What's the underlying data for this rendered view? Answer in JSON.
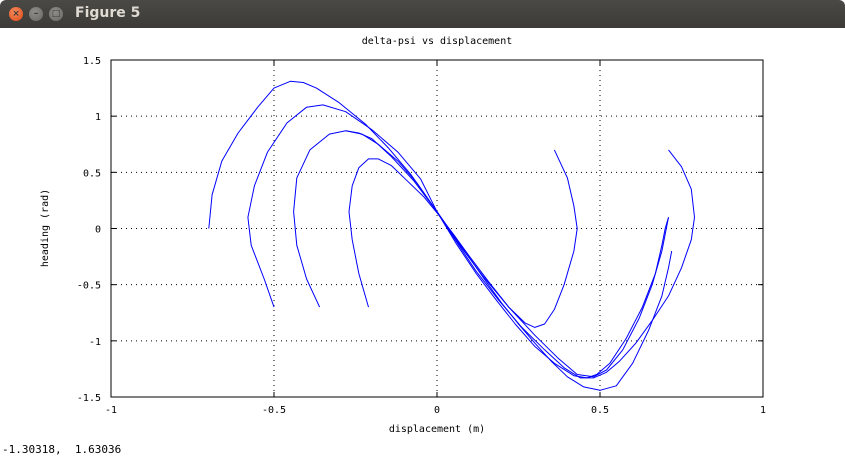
{
  "window": {
    "title": "Figure 5",
    "close_glyph": "×",
    "minimize_glyph": "–",
    "maximize_glyph": "□"
  },
  "status": {
    "coordinates": "-1.30318,  1.63036"
  },
  "colors": {
    "line": "#0000ff",
    "grid": "#000000",
    "titlebar": "#3c3b37"
  },
  "chart_data": {
    "type": "line",
    "title": "delta-psi vs displacement",
    "xlabel": "displacement (m)",
    "ylabel": "heading (rad)",
    "xlim": [
      -1,
      1
    ],
    "ylim": [
      -1.5,
      1.5
    ],
    "xticks": [
      -1,
      -0.5,
      0,
      0.5,
      1
    ],
    "xtick_labels": [
      "-1",
      "-0.5",
      "0",
      "0.5",
      "1"
    ],
    "yticks": [
      -1.5,
      -1,
      -0.5,
      0,
      0.5,
      1,
      1.5
    ],
    "ytick_labels": [
      "-1.5",
      "-1",
      "-0.5",
      "0",
      "0.5",
      "1",
      "1.5"
    ],
    "grid": true,
    "series": [
      {
        "x": [
          -0.7,
          -0.69,
          -0.66,
          -0.61,
          -0.55,
          -0.5,
          -0.45,
          -0.41,
          -0.37,
          -0.3,
          -0.22,
          -0.15,
          -0.08,
          0.0,
          0.08,
          0.15,
          0.2,
          0.25,
          0.3,
          0.35,
          0.4,
          0.45,
          0.5,
          0.55,
          0.6,
          0.65,
          0.69,
          0.71,
          0.72
        ],
        "y": [
          0.0,
          0.3,
          0.6,
          0.85,
          1.08,
          1.25,
          1.31,
          1.3,
          1.25,
          1.12,
          0.93,
          0.72,
          0.48,
          0.15,
          -0.18,
          -0.47,
          -0.67,
          -0.85,
          -1.02,
          -1.18,
          -1.32,
          -1.41,
          -1.44,
          -1.4,
          -1.2,
          -0.9,
          -0.6,
          -0.35,
          -0.2
        ]
      },
      {
        "x": [
          -0.5,
          -0.53,
          -0.57,
          -0.58,
          -0.56,
          -0.52,
          -0.46,
          -0.4,
          -0.35,
          -0.28,
          -0.2,
          -0.12,
          -0.05,
          0.0,
          0.06,
          0.12,
          0.18,
          0.24,
          0.3,
          0.36,
          0.42,
          0.46,
          0.49,
          0.53,
          0.58,
          0.63,
          0.67,
          0.69,
          0.7,
          0.71
        ],
        "y": [
          -0.7,
          -0.45,
          -0.15,
          0.1,
          0.38,
          0.68,
          0.94,
          1.08,
          1.1,
          1.04,
          0.88,
          0.68,
          0.44,
          0.15,
          -0.14,
          -0.4,
          -0.63,
          -0.85,
          -1.05,
          -1.2,
          -1.31,
          -1.33,
          -1.3,
          -1.2,
          -0.98,
          -0.7,
          -0.4,
          -0.15,
          0.0,
          0.1
        ]
      },
      {
        "x": [
          -0.36,
          -0.4,
          -0.43,
          -0.44,
          -0.43,
          -0.39,
          -0.33,
          -0.28,
          -0.23,
          -0.18,
          -0.12,
          -0.06,
          0.0,
          0.07,
          0.14,
          0.22,
          0.3,
          0.37,
          0.43,
          0.48,
          0.52,
          0.57,
          0.62,
          0.66,
          0.69,
          0.71
        ],
        "y": [
          -0.7,
          -0.45,
          -0.15,
          0.15,
          0.45,
          0.7,
          0.84,
          0.87,
          0.84,
          0.75,
          0.6,
          0.4,
          0.15,
          -0.15,
          -0.42,
          -0.7,
          -0.95,
          -1.15,
          -1.3,
          -1.32,
          -1.26,
          -1.08,
          -0.8,
          -0.5,
          -0.2,
          0.1
        ]
      },
      {
        "x": [
          -0.21,
          -0.24,
          -0.26,
          -0.27,
          -0.26,
          -0.24,
          -0.21,
          -0.18,
          -0.14,
          -0.09,
          -0.04,
          0.0,
          0.05,
          0.1,
          0.16,
          0.22,
          0.27,
          0.3,
          0.33,
          0.36,
          0.39,
          0.42,
          0.43,
          0.42,
          0.4,
          0.36
        ],
        "y": [
          -0.7,
          -0.4,
          -0.1,
          0.15,
          0.38,
          0.54,
          0.62,
          0.62,
          0.56,
          0.42,
          0.28,
          0.14,
          -0.05,
          -0.25,
          -0.48,
          -0.7,
          -0.84,
          -0.88,
          -0.85,
          -0.72,
          -0.5,
          -0.2,
          0.0,
          0.2,
          0.45,
          0.7
        ]
      },
      {
        "x": [
          -0.28,
          -0.24,
          -0.2,
          -0.14,
          -0.07,
          0.0,
          0.06,
          0.12,
          0.19,
          0.26,
          0.33,
          0.39,
          0.44,
          0.48,
          0.52,
          0.56,
          0.61,
          0.66,
          0.71,
          0.75,
          0.78,
          0.79,
          0.78,
          0.75,
          0.71
        ],
        "y": [
          0.87,
          0.85,
          0.8,
          0.64,
          0.42,
          0.15,
          -0.12,
          -0.38,
          -0.64,
          -0.88,
          -1.08,
          -1.24,
          -1.33,
          -1.33,
          -1.28,
          -1.18,
          -1.02,
          -0.82,
          -0.6,
          -0.35,
          -0.1,
          0.1,
          0.35,
          0.55,
          0.7
        ]
      }
    ]
  }
}
